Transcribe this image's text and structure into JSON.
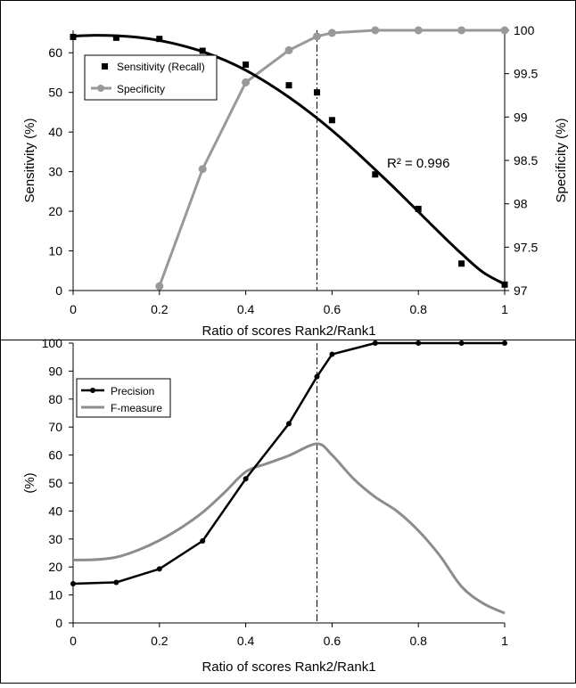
{
  "chart_data": [
    {
      "type": "line",
      "xlabel": "Ratio of scores Rank2/Rank1",
      "ylabel": "Sensitivity (%)",
      "y2label": "Specificity (%)",
      "xlim": [
        0,
        1
      ],
      "ylim": [
        0,
        65
      ],
      "y2lim": [
        97,
        100
      ],
      "x_ticks": [
        "0",
        "0.2",
        "0.4",
        "0.6",
        "0.8",
        "1"
      ],
      "y_ticks": [
        "0",
        "10",
        "20",
        "30",
        "40",
        "50",
        "60"
      ],
      "y2_ticks": [
        "97",
        "97.5",
        "98",
        "98.5",
        "99",
        "99.5",
        "100"
      ],
      "legend_position": "top-left",
      "grid": false,
      "threshold_line_x": 0.565,
      "annotation": "R² = 0.996",
      "series": [
        {
          "name": "Sensitivity (Recall)",
          "axis": "left",
          "style": "markers",
          "color": "#000000",
          "x": [
            0,
            0.1,
            0.2,
            0.3,
            0.4,
            0.5,
            0.565,
            0.6,
            0.7,
            0.8,
            0.9,
            1.0
          ],
          "values": [
            64,
            63.8,
            63.5,
            60.5,
            57,
            51.8,
            50,
            43,
            29.3,
            20.6,
            6.8,
            1.5
          ]
        },
        {
          "name": "Specificity",
          "axis": "right",
          "style": "line-markers",
          "color": "#999999",
          "x": [
            0.2,
            0.3,
            0.4,
            0.5,
            0.565,
            0.6,
            0.7,
            0.8,
            0.9,
            1.0
          ],
          "values": [
            97.05,
            98.4,
            99.4,
            99.77,
            99.93,
            99.97,
            100,
            100,
            100,
            100
          ]
        },
        {
          "name": "",
          "axis": "left",
          "style": "trendline",
          "color": "#000000",
          "x": [
            0,
            0.05,
            0.1,
            0.15,
            0.2,
            0.25,
            0.3,
            0.35,
            0.4,
            0.45,
            0.5,
            0.55,
            0.6,
            0.65,
            0.7,
            0.75,
            0.8,
            0.85,
            0.9,
            0.95,
            1.0
          ],
          "values": [
            64.2,
            64.4,
            64.3,
            63.9,
            63.1,
            61.9,
            60.3,
            58.2,
            55.6,
            52.4,
            48.8,
            44.8,
            40.4,
            35.6,
            30.5,
            25.3,
            19.9,
            14.5,
            9.3,
            4.6,
            1.6
          ]
        }
      ]
    },
    {
      "type": "line",
      "xlabel": "Ratio of scores Rank2/Rank1",
      "ylabel": "(%)",
      "xlim": [
        0,
        1
      ],
      "ylim": [
        0,
        100
      ],
      "x_ticks": [
        "0",
        "0.2",
        "0.4",
        "0.6",
        "0.8",
        "1"
      ],
      "y_ticks": [
        "0",
        "10",
        "20",
        "30",
        "40",
        "50",
        "60",
        "70",
        "80",
        "90",
        "100"
      ],
      "legend_position": "top-left",
      "grid": false,
      "threshold_line_x": 0.565,
      "series": [
        {
          "name": "Precision",
          "style": "line-markers",
          "color": "#000000",
          "x": [
            0,
            0.1,
            0.2,
            0.3,
            0.4,
            0.5,
            0.565,
            0.6,
            0.7,
            0.8,
            0.9,
            1.0
          ],
          "values": [
            14,
            14.5,
            19.3,
            29.3,
            51.5,
            71.2,
            88,
            96,
            100,
            100,
            100,
            100
          ]
        },
        {
          "name": "F-measure",
          "style": "smooth-line",
          "color": "#8c8c8c",
          "x": [
            0,
            0.05,
            0.1,
            0.15,
            0.2,
            0.25,
            0.3,
            0.35,
            0.4,
            0.45,
            0.5,
            0.565,
            0.6,
            0.65,
            0.7,
            0.75,
            0.8,
            0.85,
            0.9,
            0.95,
            1.0
          ],
          "values": [
            22.5,
            22.6,
            23.5,
            26,
            29.5,
            34,
            39.5,
            46.5,
            54,
            57,
            59.8,
            64,
            60,
            51.5,
            45,
            40,
            33,
            24,
            13,
            7,
            3.5
          ]
        }
      ]
    }
  ]
}
